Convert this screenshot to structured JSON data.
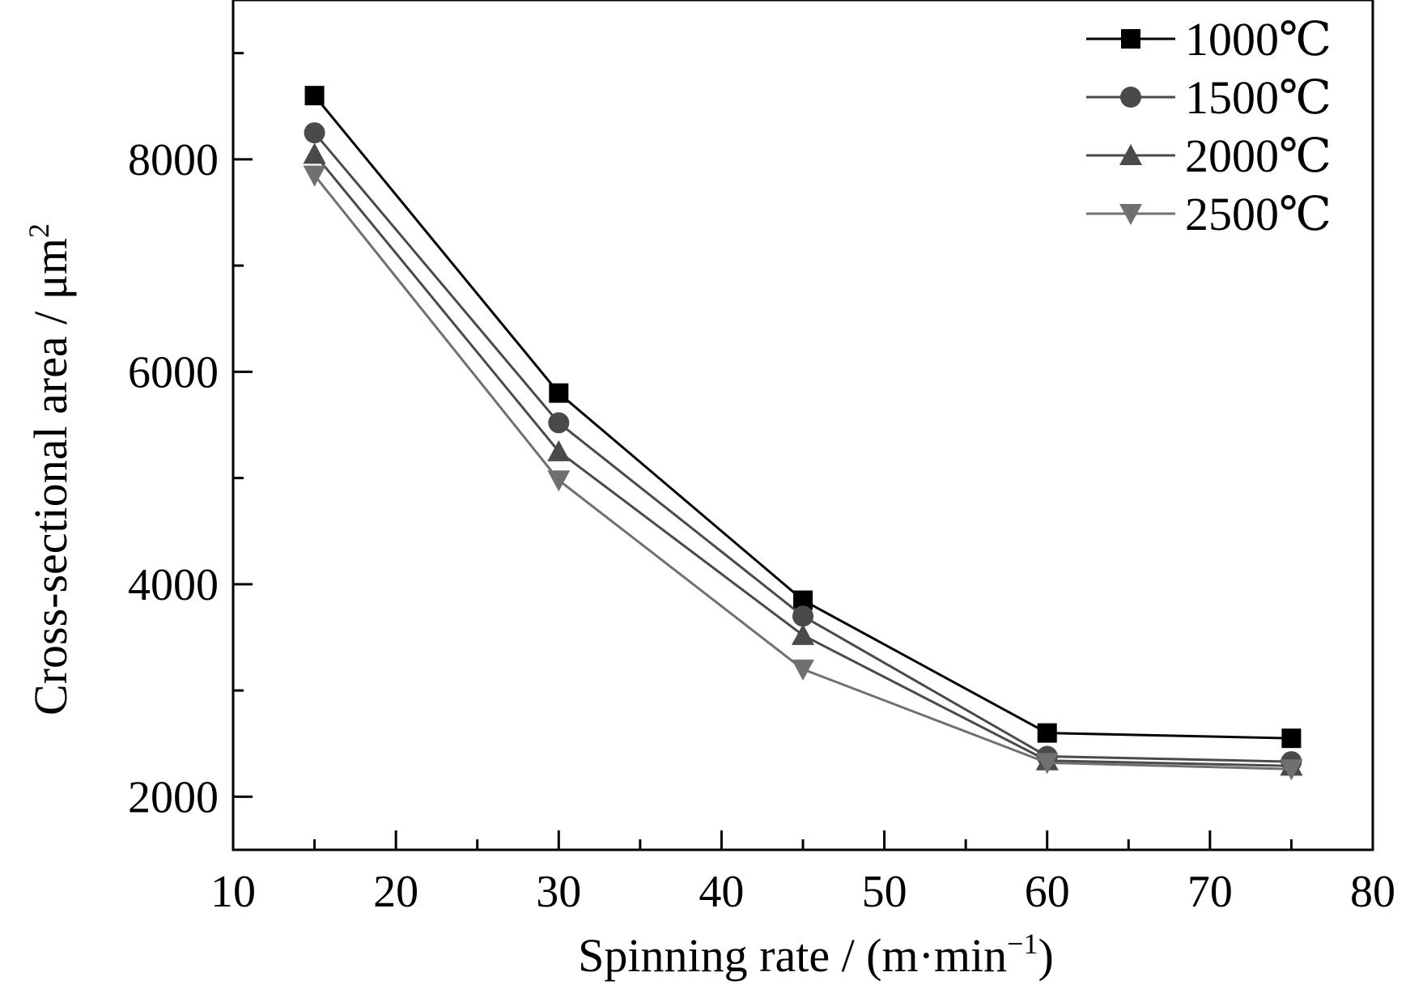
{
  "chart_data": {
    "type": "line",
    "title": "",
    "xlabel": "Spinning rate / (m·min",
    "xlabel_sup": "−1",
    "xlabel_end": ")",
    "ylabel": "Cross-sectional area / μm",
    "ylabel_sup": "2",
    "xlim": [
      10,
      80
    ],
    "ylim": [
      1500,
      9500
    ],
    "x_ticks": [
      10,
      20,
      30,
      40,
      50,
      60,
      70,
      80
    ],
    "y_ticks": [
      2000,
      4000,
      6000,
      8000
    ],
    "grid": false,
    "legend_position": "top-right",
    "x": [
      15,
      30,
      45,
      60,
      75
    ],
    "series": [
      {
        "name": "1000℃",
        "marker": "square",
        "color": "#000000",
        "values": [
          8600,
          5800,
          3850,
          2600,
          2550
        ]
      },
      {
        "name": "1500℃",
        "marker": "circle",
        "color": "#4a4a4a",
        "values": [
          8250,
          5520,
          3700,
          2380,
          2330
        ]
      },
      {
        "name": "2000℃",
        "marker": "triangle-up",
        "color": "#4a4a4a",
        "values": [
          8050,
          5250,
          3520,
          2340,
          2290
        ]
      },
      {
        "name": "2500℃",
        "marker": "triangle-down",
        "color": "#707070",
        "values": [
          7850,
          4980,
          3200,
          2320,
          2260
        ]
      }
    ]
  }
}
